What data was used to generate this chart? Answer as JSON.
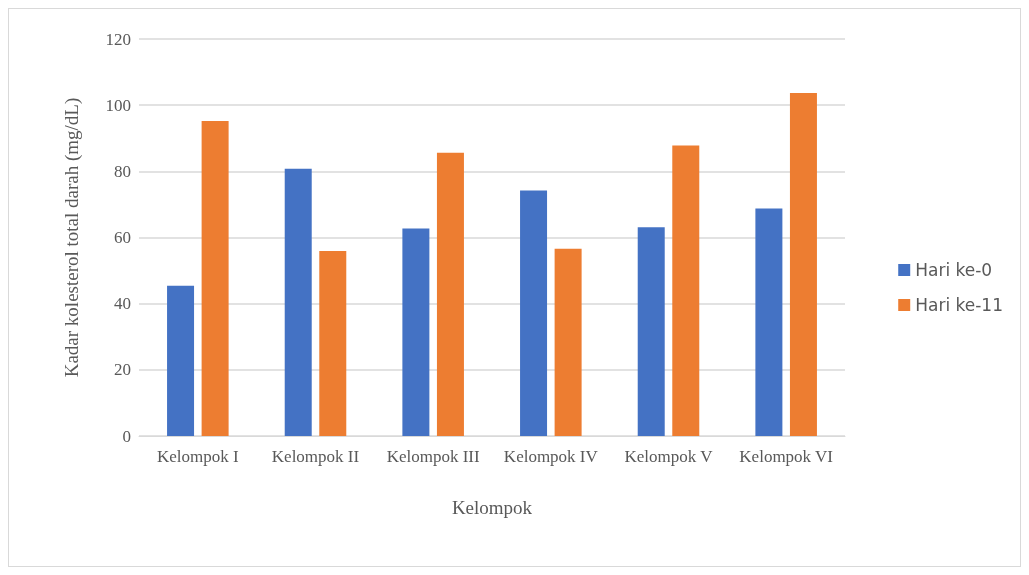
{
  "chart_data": {
    "type": "bar",
    "xlabel": "Kelompok",
    "ylabel": "Kadar kolesterol total darah (mg/dL)",
    "categories": [
      "Kelompok I",
      "Kelompok II",
      "Kelompok III",
      "Kelompok IV",
      "Kelompok V",
      "Kelompok VI"
    ],
    "series": [
      {
        "name": "Hari ke-0",
        "color": "#4472c4",
        "values": [
          45.4,
          80.8,
          62.7,
          74.2,
          63.1,
          68.8
        ]
      },
      {
        "name": "Hari ke-11",
        "color": "#ed7d31",
        "values": [
          95.2,
          55.9,
          85.6,
          56.6,
          87.8,
          103.7
        ]
      }
    ],
    "ylim": [
      0,
      120
    ],
    "yticks": [
      0,
      20,
      40,
      60,
      80,
      100,
      120
    ],
    "grid": "y",
    "legend": "right"
  }
}
